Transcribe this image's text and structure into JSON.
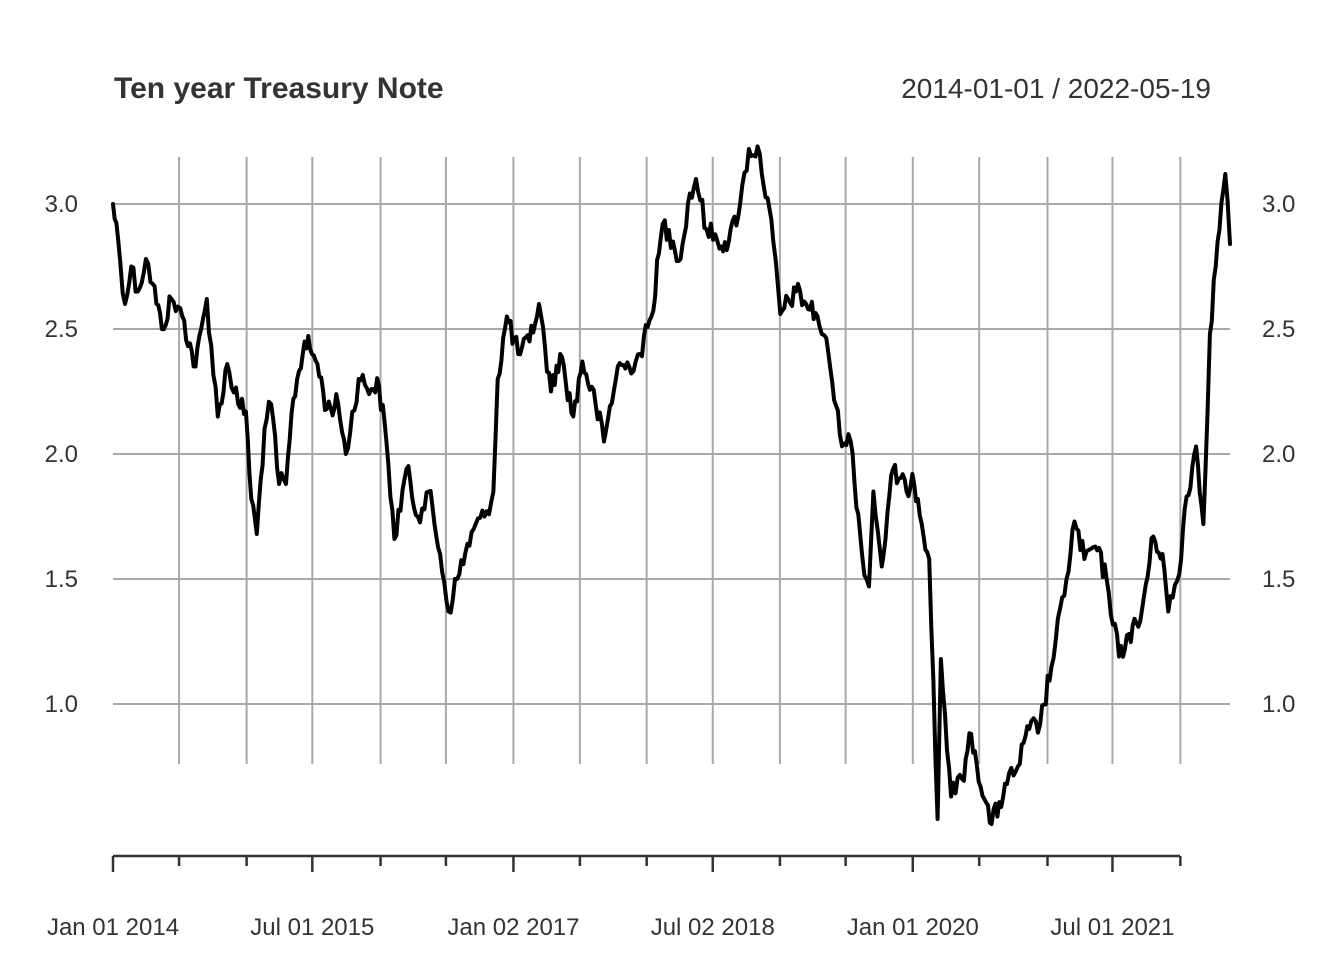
{
  "chart_data": {
    "type": "line",
    "title": "Ten year Treasury Note",
    "date_range_label": "2014-01-01 / 2022-05-19",
    "xlabel": "",
    "ylabel": "",
    "ylim": [
      0.45,
      3.22
    ],
    "xlim": [
      "2014-01-01",
      "2022-05-19"
    ],
    "grid": true,
    "y_ticks": [
      1.0,
      1.5,
      2.0,
      2.5,
      3.0
    ],
    "y_tick_labels": [
      "1.0",
      "1.5",
      "2.0",
      "2.5",
      "3.0"
    ],
    "x_major_ticks": [
      {
        "date": "2014-01-01",
        "label": "Jan 01 2014"
      },
      {
        "date": "2015-07-01",
        "label": "Jul 01 2015"
      },
      {
        "date": "2017-01-02",
        "label": "Jan 02 2017"
      },
      {
        "date": "2018-07-02",
        "label": "Jul 02 2018"
      },
      {
        "date": "2020-01-01",
        "label": "Jan 01 2020"
      },
      {
        "date": "2021-07-01",
        "label": "Jul 01 2021"
      }
    ],
    "x_minor_ticks": [
      "2014-07-01",
      "2015-01-02",
      "2016-01-04",
      "2016-07-01",
      "2017-07-03",
      "2018-01-02",
      "2019-01-02",
      "2019-07-01",
      "2020-07-01",
      "2021-01-04",
      "2022-01-03"
    ],
    "series": [
      {
        "values": [
          {
            "date": "2014-01-01",
            "value": 3.0
          },
          {
            "date": "2014-01-15",
            "value": 2.86
          },
          {
            "date": "2014-02-03",
            "value": 2.6
          },
          {
            "date": "2014-02-20",
            "value": 2.75
          },
          {
            "date": "2014-03-10",
            "value": 2.65
          },
          {
            "date": "2014-04-01",
            "value": 2.78
          },
          {
            "date": "2014-04-20",
            "value": 2.68
          },
          {
            "date": "2014-05-15",
            "value": 2.5
          },
          {
            "date": "2014-06-10",
            "value": 2.62
          },
          {
            "date": "2014-07-10",
            "value": 2.55
          },
          {
            "date": "2014-08-15",
            "value": 2.35
          },
          {
            "date": "2014-09-15",
            "value": 2.62
          },
          {
            "date": "2014-10-15",
            "value": 2.15
          },
          {
            "date": "2014-11-10",
            "value": 2.36
          },
          {
            "date": "2014-12-10",
            "value": 2.2
          },
          {
            "date": "2014-12-31",
            "value": 2.17
          },
          {
            "date": "2015-01-15",
            "value": 1.82
          },
          {
            "date": "2015-01-30",
            "value": 1.68
          },
          {
            "date": "2015-02-20",
            "value": 2.1
          },
          {
            "date": "2015-03-10",
            "value": 2.2
          },
          {
            "date": "2015-04-01",
            "value": 1.88
          },
          {
            "date": "2015-04-20",
            "value": 1.88
          },
          {
            "date": "2015-05-10",
            "value": 2.22
          },
          {
            "date": "2015-06-10",
            "value": 2.45
          },
          {
            "date": "2015-06-25",
            "value": 2.42
          },
          {
            "date": "2015-07-15",
            "value": 2.36
          },
          {
            "date": "2015-08-10",
            "value": 2.18
          },
          {
            "date": "2015-09-10",
            "value": 2.2
          },
          {
            "date": "2015-10-01",
            "value": 2.0
          },
          {
            "date": "2015-11-05",
            "value": 2.3
          },
          {
            "date": "2015-12-15",
            "value": 2.26
          },
          {
            "date": "2015-12-31",
            "value": 2.27
          },
          {
            "date": "2016-01-20",
            "value": 2.05
          },
          {
            "date": "2016-02-11",
            "value": 1.66
          },
          {
            "date": "2016-03-15",
            "value": 1.94
          },
          {
            "date": "2016-04-15",
            "value": 1.75
          },
          {
            "date": "2016-05-15",
            "value": 1.85
          },
          {
            "date": "2016-06-15",
            "value": 1.6
          },
          {
            "date": "2016-07-08",
            "value": 1.37
          },
          {
            "date": "2016-08-01",
            "value": 1.5
          },
          {
            "date": "2016-09-15",
            "value": 1.7
          },
          {
            "date": "2016-10-15",
            "value": 1.75
          },
          {
            "date": "2016-11-08",
            "value": 1.85
          },
          {
            "date": "2016-11-20",
            "value": 2.3
          },
          {
            "date": "2016-12-15",
            "value": 2.55
          },
          {
            "date": "2017-01-15",
            "value": 2.4
          },
          {
            "date": "2017-02-15",
            "value": 2.45
          },
          {
            "date": "2017-03-13",
            "value": 2.6
          },
          {
            "date": "2017-04-15",
            "value": 2.25
          },
          {
            "date": "2017-05-10",
            "value": 2.4
          },
          {
            "date": "2017-06-15",
            "value": 2.15
          },
          {
            "date": "2017-07-10",
            "value": 2.37
          },
          {
            "date": "2017-08-15",
            "value": 2.2
          },
          {
            "date": "2017-09-07",
            "value": 2.05
          },
          {
            "date": "2017-10-15",
            "value": 2.35
          },
          {
            "date": "2017-11-15",
            "value": 2.35
          },
          {
            "date": "2017-12-15",
            "value": 2.4
          },
          {
            "date": "2018-01-15",
            "value": 2.55
          },
          {
            "date": "2018-02-15",
            "value": 2.92
          },
          {
            "date": "2018-03-15",
            "value": 2.85
          },
          {
            "date": "2018-04-05",
            "value": 2.78
          },
          {
            "date": "2018-04-25",
            "value": 3.0
          },
          {
            "date": "2018-05-17",
            "value": 3.1
          },
          {
            "date": "2018-06-15",
            "value": 2.9
          },
          {
            "date": "2018-07-15",
            "value": 2.85
          },
          {
            "date": "2018-08-15",
            "value": 2.85
          },
          {
            "date": "2018-09-15",
            "value": 3.0
          },
          {
            "date": "2018-10-09",
            "value": 3.22
          },
          {
            "date": "2018-11-08",
            "value": 3.2
          },
          {
            "date": "2018-12-15",
            "value": 2.85
          },
          {
            "date": "2019-01-03",
            "value": 2.56
          },
          {
            "date": "2019-02-15",
            "value": 2.65
          },
          {
            "date": "2019-03-15",
            "value": 2.6
          },
          {
            "date": "2019-04-15",
            "value": 2.55
          },
          {
            "date": "2019-05-15",
            "value": 2.4
          },
          {
            "date": "2019-06-15",
            "value": 2.08
          },
          {
            "date": "2019-07-15",
            "value": 2.05
          },
          {
            "date": "2019-08-15",
            "value": 1.6
          },
          {
            "date": "2019-09-03",
            "value": 1.47
          },
          {
            "date": "2019-09-15",
            "value": 1.85
          },
          {
            "date": "2019-10-08",
            "value": 1.55
          },
          {
            "date": "2019-11-08",
            "value": 1.94
          },
          {
            "date": "2019-12-15",
            "value": 1.85
          },
          {
            "date": "2019-12-31",
            "value": 1.92
          },
          {
            "date": "2020-01-15",
            "value": 1.82
          },
          {
            "date": "2020-02-15",
            "value": 1.58
          },
          {
            "date": "2020-03-09",
            "value": 0.54
          },
          {
            "date": "2020-03-18",
            "value": 1.18
          },
          {
            "date": "2020-04-15",
            "value": 0.63
          },
          {
            "date": "2020-05-15",
            "value": 0.7
          },
          {
            "date": "2020-06-09",
            "value": 0.88
          },
          {
            "date": "2020-07-15",
            "value": 0.62
          },
          {
            "date": "2020-08-04",
            "value": 0.52
          },
          {
            "date": "2020-09-15",
            "value": 0.68
          },
          {
            "date": "2020-10-15",
            "value": 0.75
          },
          {
            "date": "2020-11-15",
            "value": 0.9
          },
          {
            "date": "2020-12-15",
            "value": 0.92
          },
          {
            "date": "2021-01-15",
            "value": 1.15
          },
          {
            "date": "2021-02-25",
            "value": 1.5
          },
          {
            "date": "2021-03-19",
            "value": 1.73
          },
          {
            "date": "2021-04-15",
            "value": 1.58
          },
          {
            "date": "2021-05-15",
            "value": 1.63
          },
          {
            "date": "2021-06-15",
            "value": 1.5
          },
          {
            "date": "2021-07-19",
            "value": 1.19
          },
          {
            "date": "2021-08-15",
            "value": 1.28
          },
          {
            "date": "2021-09-15",
            "value": 1.33
          },
          {
            "date": "2021-10-21",
            "value": 1.67
          },
          {
            "date": "2021-11-15",
            "value": 1.6
          },
          {
            "date": "2021-12-01",
            "value": 1.37
          },
          {
            "date": "2021-12-31",
            "value": 1.52
          },
          {
            "date": "2022-01-15",
            "value": 1.78
          },
          {
            "date": "2022-02-15",
            "value": 2.03
          },
          {
            "date": "2022-03-07",
            "value": 1.72
          },
          {
            "date": "2022-03-25",
            "value": 2.48
          },
          {
            "date": "2022-04-15",
            "value": 2.85
          },
          {
            "date": "2022-05-06",
            "value": 3.12
          },
          {
            "date": "2022-05-19",
            "value": 2.84
          }
        ]
      }
    ]
  }
}
